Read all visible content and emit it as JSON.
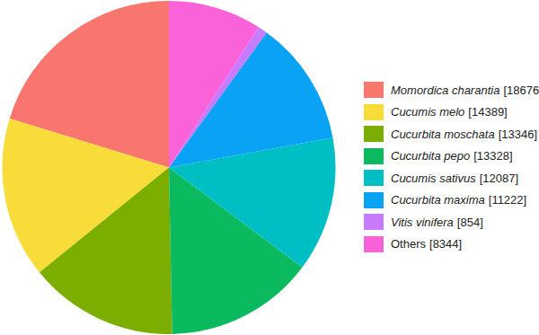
{
  "chart_data": {
    "type": "pie",
    "categories": [
      "Momordica charantia",
      "Cucumis melo",
      "Cucurbita moschata",
      "Cucurbita pepo",
      "Cucumis sativus",
      "Cucurbita maxima",
      "Vitis vinifera",
      "Others"
    ],
    "values": [
      18676,
      14389,
      13346,
      13328,
      12087,
      11222,
      854,
      8344
    ],
    "value_labels": [
      "[18676]",
      "[14389]",
      "[13346]",
      "[13328]",
      "[12087]",
      "[11222]",
      "[854]",
      "[8344]"
    ],
    "colors": [
      "#f8766d",
      "#f7dc3a",
      "#7cae00",
      "#0bba5f",
      "#00bfc4",
      "#0aa2f5",
      "#c77cff",
      "#fa62da"
    ],
    "legend": "right"
  }
}
